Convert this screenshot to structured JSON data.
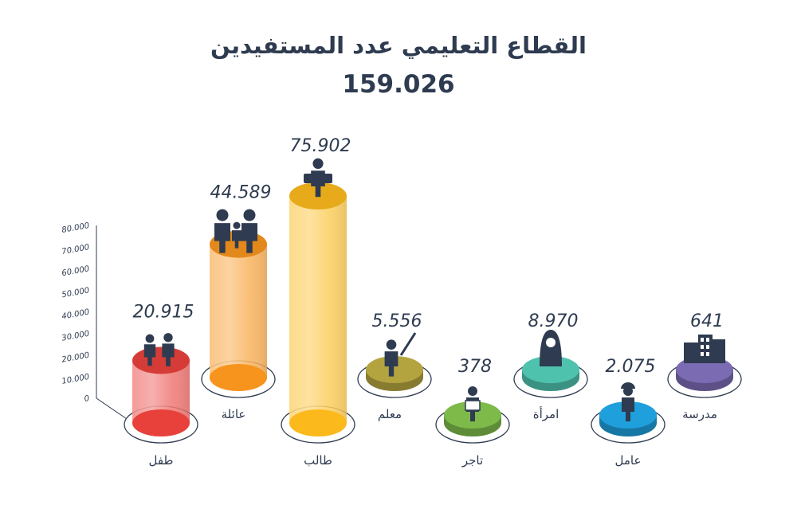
{
  "header": {
    "title": "القطاع التعليمي عدد المستفيدين",
    "total": "159.026"
  },
  "chart_data": {
    "type": "bar",
    "title": "القطاع التعليمي عدد المستفيدين",
    "categories": [
      "طفل",
      "عائلة",
      "طالب",
      "معلم",
      "تاجر",
      "امرأة",
      "عامل",
      "مدرسة"
    ],
    "values": [
      20915,
      44589,
      75902,
      5556,
      378,
      8970,
      2075,
      641
    ],
    "value_labels": [
      "20.915",
      "44.589",
      "75.902",
      "5.556",
      "378",
      "8.970",
      "2.075",
      "641"
    ],
    "icons": [
      "children-icon",
      "family-icon",
      "student-icon",
      "teacher-icon",
      "merchant-icon",
      "woman-icon",
      "worker-icon",
      "school-icon"
    ],
    "colors": [
      "#e8413c",
      "#f7941d",
      "#fbb91c",
      "#b4a440",
      "#7dba4a",
      "#4fc2ae",
      "#1f9fdb",
      "#7b6bb3"
    ],
    "ylim": [
      0,
      80000
    ],
    "yticks": [
      "0",
      "10.000",
      "20.000",
      "30.000",
      "40.000",
      "50.000",
      "60.000",
      "70.000",
      "80.000"
    ],
    "grid": false,
    "legend": "none"
  }
}
